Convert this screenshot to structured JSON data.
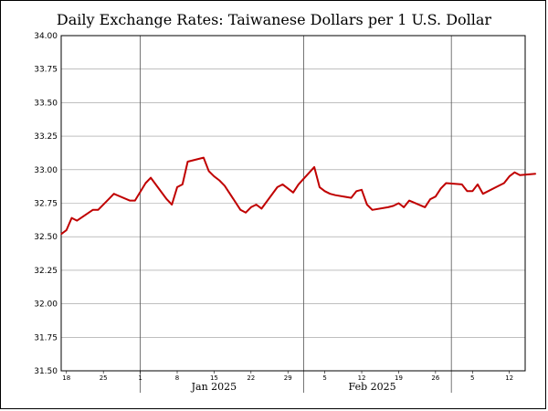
{
  "chart_data": {
    "type": "line",
    "title": "Daily Exchange Rates: Taiwanese Dollars per 1 U.S. Dollar",
    "xlabel": "",
    "ylabel": "",
    "ylim": [
      31.5,
      34.0
    ],
    "yticks": [
      "31.50",
      "31.75",
      "32.00",
      "32.25",
      "32.50",
      "32.75",
      "33.00",
      "33.25",
      "33.50",
      "33.75",
      "34.00"
    ],
    "x_start": "2024-12-17",
    "x_end": "2025-03-14",
    "day_ticks": [
      {
        "date": "2024-12-18",
        "label": "18"
      },
      {
        "date": "2024-12-25",
        "label": "25"
      },
      {
        "date": "2025-01-01",
        "label": "1"
      },
      {
        "date": "2025-01-08",
        "label": "8"
      },
      {
        "date": "2025-01-15",
        "label": "15"
      },
      {
        "date": "2025-01-22",
        "label": "22"
      },
      {
        "date": "2025-01-29",
        "label": "29"
      },
      {
        "date": "2025-02-05",
        "label": "5"
      },
      {
        "date": "2025-02-12",
        "label": "12"
      },
      {
        "date": "2025-02-19",
        "label": "19"
      },
      {
        "date": "2025-02-26",
        "label": "26"
      },
      {
        "date": "2025-03-05",
        "label": "5"
      },
      {
        "date": "2025-03-12",
        "label": "12"
      }
    ],
    "month_lines": [
      "2025-01-01",
      "2025-02-01",
      "2025-03-01"
    ],
    "month_labels": [
      {
        "date": "2025-01-15",
        "label": "Jan 2025"
      },
      {
        "date": "2025-02-14",
        "label": "Feb 2025"
      }
    ],
    "grid": true,
    "series": [
      {
        "color": "#c00000",
        "points": [
          [
            "2024-12-17",
            32.52
          ],
          [
            "2024-12-18",
            32.55
          ],
          [
            "2024-12-19",
            32.64
          ],
          [
            "2024-12-20",
            32.62
          ],
          [
            "2024-12-23",
            32.7
          ],
          [
            "2024-12-24",
            32.7
          ],
          [
            "2024-12-26",
            32.78
          ],
          [
            "2024-12-27",
            32.82
          ],
          [
            "2024-12-30",
            32.77
          ],
          [
            "2024-12-31",
            32.77
          ],
          [
            "2025-01-02",
            32.9
          ],
          [
            "2025-01-03",
            32.94
          ],
          [
            "2025-01-06",
            32.78
          ],
          [
            "2025-01-07",
            32.74
          ],
          [
            "2025-01-08",
            32.87
          ],
          [
            "2025-01-09",
            32.89
          ],
          [
            "2025-01-10",
            33.06
          ],
          [
            "2025-01-13",
            33.09
          ],
          [
            "2025-01-14",
            32.99
          ],
          [
            "2025-01-15",
            32.95
          ],
          [
            "2025-01-16",
            32.92
          ],
          [
            "2025-01-17",
            32.88
          ],
          [
            "2025-01-20",
            32.7
          ],
          [
            "2025-01-21",
            32.68
          ],
          [
            "2025-01-22",
            32.72
          ],
          [
            "2025-01-23",
            32.74
          ],
          [
            "2025-01-24",
            32.71
          ],
          [
            "2025-01-27",
            32.87
          ],
          [
            "2025-01-28",
            32.89
          ],
          [
            "2025-01-30",
            32.83
          ],
          [
            "2025-01-31",
            32.89
          ],
          [
            "2025-02-03",
            33.02
          ],
          [
            "2025-02-04",
            32.87
          ],
          [
            "2025-02-05",
            32.84
          ],
          [
            "2025-02-06",
            32.82
          ],
          [
            "2025-02-07",
            32.81
          ],
          [
            "2025-02-10",
            32.79
          ],
          [
            "2025-02-11",
            32.84
          ],
          [
            "2025-02-12",
            32.85
          ],
          [
            "2025-02-13",
            32.74
          ],
          [
            "2025-02-14",
            32.7
          ],
          [
            "2025-02-17",
            32.72
          ],
          [
            "2025-02-18",
            32.73
          ],
          [
            "2025-02-19",
            32.75
          ],
          [
            "2025-02-20",
            32.72
          ],
          [
            "2025-02-21",
            32.77
          ],
          [
            "2025-02-24",
            32.72
          ],
          [
            "2025-02-25",
            32.78
          ],
          [
            "2025-02-26",
            32.8
          ],
          [
            "2025-02-27",
            32.86
          ],
          [
            "2025-02-28",
            32.9
          ],
          [
            "2025-03-03",
            32.89
          ],
          [
            "2025-03-04",
            32.84
          ],
          [
            "2025-03-05",
            32.84
          ],
          [
            "2025-03-06",
            32.89
          ],
          [
            "2025-03-07",
            32.82
          ],
          [
            "2025-03-10",
            32.88
          ],
          [
            "2025-03-11",
            32.9
          ],
          [
            "2025-03-12",
            32.95
          ],
          [
            "2025-03-13",
            32.98
          ],
          [
            "2025-03-14",
            32.96
          ],
          [
            "2025-03-17",
            32.97
          ]
        ]
      }
    ]
  }
}
